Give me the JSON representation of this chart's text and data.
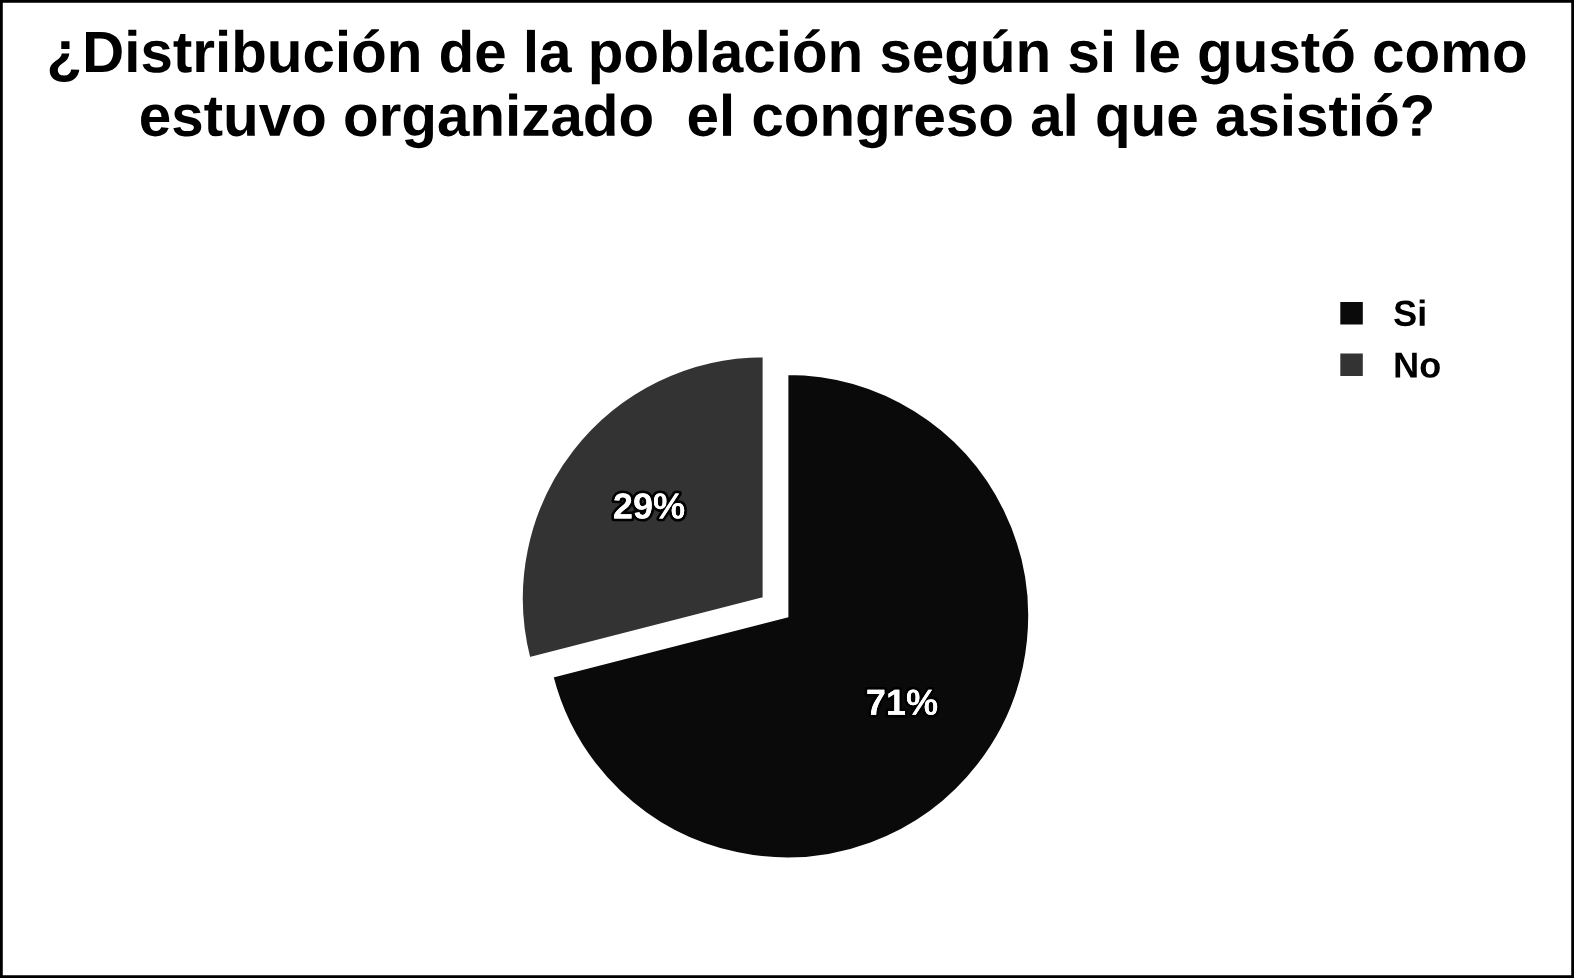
{
  "chart_data": {
    "type": "pie",
    "title": "¿Distribución de la población según si le gustó como estuvo organizado  el congreso al que asistió?",
    "categories": [
      "Si",
      "No"
    ],
    "values": [
      71,
      29
    ],
    "colors": [
      "#0a0a0a",
      "#333333"
    ],
    "value_labels": [
      "71%",
      "29%"
    ],
    "legend": "right"
  }
}
